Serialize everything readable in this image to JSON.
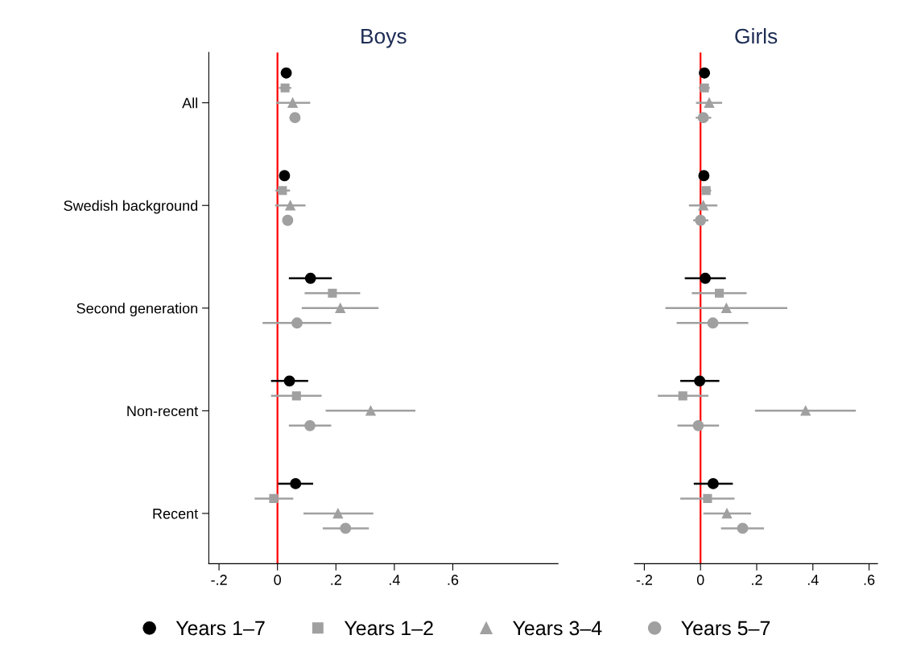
{
  "chart_data": [
    {
      "type": "scatter",
      "orientation": "horizontal",
      "title": "Boys",
      "categories": [
        "All",
        "Swedish background",
        "Second generation",
        "Non-recent",
        "Recent"
      ],
      "xlim": [
        -0.235,
        0.96
      ],
      "xticks": [
        {
          "value": -0.2,
          "label": "-.2"
        },
        0,
        {
          "value": 0.2,
          "label": ".2"
        },
        {
          "value": 0.4,
          "label": ".4"
        },
        {
          "value": 0.6,
          "label": ".6"
        }
      ],
      "ref_lines": [
        {
          "axis": "x",
          "value": 0,
          "color": "#ff0000"
        }
      ],
      "legend": "bottom",
      "grid": false,
      "series": [
        {
          "name": "Years 1–7",
          "color": "#000000",
          "marker": "circle",
          "values": [
            0.03,
            0.024,
            0.113,
            0.041,
            0.062
          ],
          "errors": [
            [
              0.015,
              0.047
            ],
            [
              0.01,
              0.039
            ],
            [
              0.039,
              0.186
            ],
            [
              -0.022,
              0.105
            ],
            [
              0.002,
              0.122
            ]
          ]
        },
        {
          "name": "Years 1–2",
          "color": "#a0a0a0",
          "marker": "square",
          "values": [
            0.026,
            0.017,
            0.188,
            0.065,
            -0.013
          ],
          "errors": [
            [
              0.005,
              0.047
            ],
            [
              -0.007,
              0.043
            ],
            [
              0.093,
              0.283
            ],
            [
              -0.022,
              0.151
            ],
            [
              -0.078,
              0.054
            ]
          ]
        },
        {
          "name": "Years 3–4",
          "color": "#a0a0a0",
          "marker": "triangle",
          "values": [
            0.052,
            0.044,
            0.215,
            0.319,
            0.207
          ],
          "errors": [
            [
              -0.005,
              0.112
            ],
            [
              -0.008,
              0.096
            ],
            [
              0.083,
              0.346
            ],
            [
              0.165,
              0.472
            ],
            [
              0.089,
              0.328
            ]
          ]
        },
        {
          "name": "Years 5–7",
          "color": "#a0a0a0",
          "marker": "circle",
          "values": [
            0.06,
            0.035,
            0.067,
            0.111,
            0.233
          ],
          "errors": [
            [
              0.041,
              0.078
            ],
            [
              0.021,
              0.05
            ],
            [
              -0.051,
              0.184
            ],
            [
              0.039,
              0.184
            ],
            [
              0.155,
              0.313
            ]
          ]
        }
      ]
    },
    {
      "type": "scatter",
      "orientation": "horizontal",
      "title": "Girls",
      "categories": [
        null,
        null,
        null,
        null,
        null
      ],
      "tick_labels": "x",
      "xlim": [
        -0.235,
        0.63
      ],
      "xticks": [
        {
          "value": -0.2,
          "label": "-.2"
        },
        0,
        {
          "value": 0.2,
          "label": ".2"
        },
        {
          "value": 0.4,
          "label": ".4"
        },
        {
          "value": 0.6,
          "label": ".6"
        }
      ],
      "ref_lines": [
        {
          "axis": "x",
          "value": 0,
          "color": "#ff0000"
        }
      ],
      "grid": false,
      "series": [
        {
          "color": "#000000",
          "marker": "circle",
          "values": [
            0.014,
            0.012,
            0.017,
            -0.003,
            0.045
          ],
          "errors": [
            [
              -0.002,
              0.032
            ],
            [
              -0.003,
              0.027
            ],
            [
              -0.056,
              0.09
            ],
            [
              -0.072,
              0.067
            ],
            [
              -0.024,
              0.115
            ]
          ]
        },
        {
          "color": "#a0a0a0",
          "marker": "square",
          "values": [
            0.014,
            0.02,
            0.067,
            -0.063,
            0.025
          ],
          "errors": [
            [
              -0.006,
              0.033
            ],
            [
              0.004,
              0.038
            ],
            [
              -0.031,
              0.164
            ],
            [
              -0.152,
              0.028
            ],
            [
              -0.072,
              0.121
            ]
          ]
        },
        {
          "color": "#a0a0a0",
          "marker": "triangle",
          "values": [
            0.031,
            0.01,
            0.092,
            0.374,
            0.094
          ],
          "errors": [
            [
              -0.016,
              0.077
            ],
            [
              -0.041,
              0.06
            ],
            [
              -0.125,
              0.309
            ],
            [
              0.194,
              0.553
            ],
            [
              0.01,
              0.18
            ]
          ]
        },
        {
          "color": "#a0a0a0",
          "marker": "circle",
          "values": [
            0.01,
            0.0,
            0.044,
            -0.008,
            0.15
          ],
          "errors": [
            [
              -0.017,
              0.038
            ],
            [
              -0.026,
              0.028
            ],
            [
              -0.085,
              0.17
            ],
            [
              -0.082,
              0.066
            ],
            [
              0.073,
              0.226
            ]
          ]
        }
      ]
    }
  ]
}
